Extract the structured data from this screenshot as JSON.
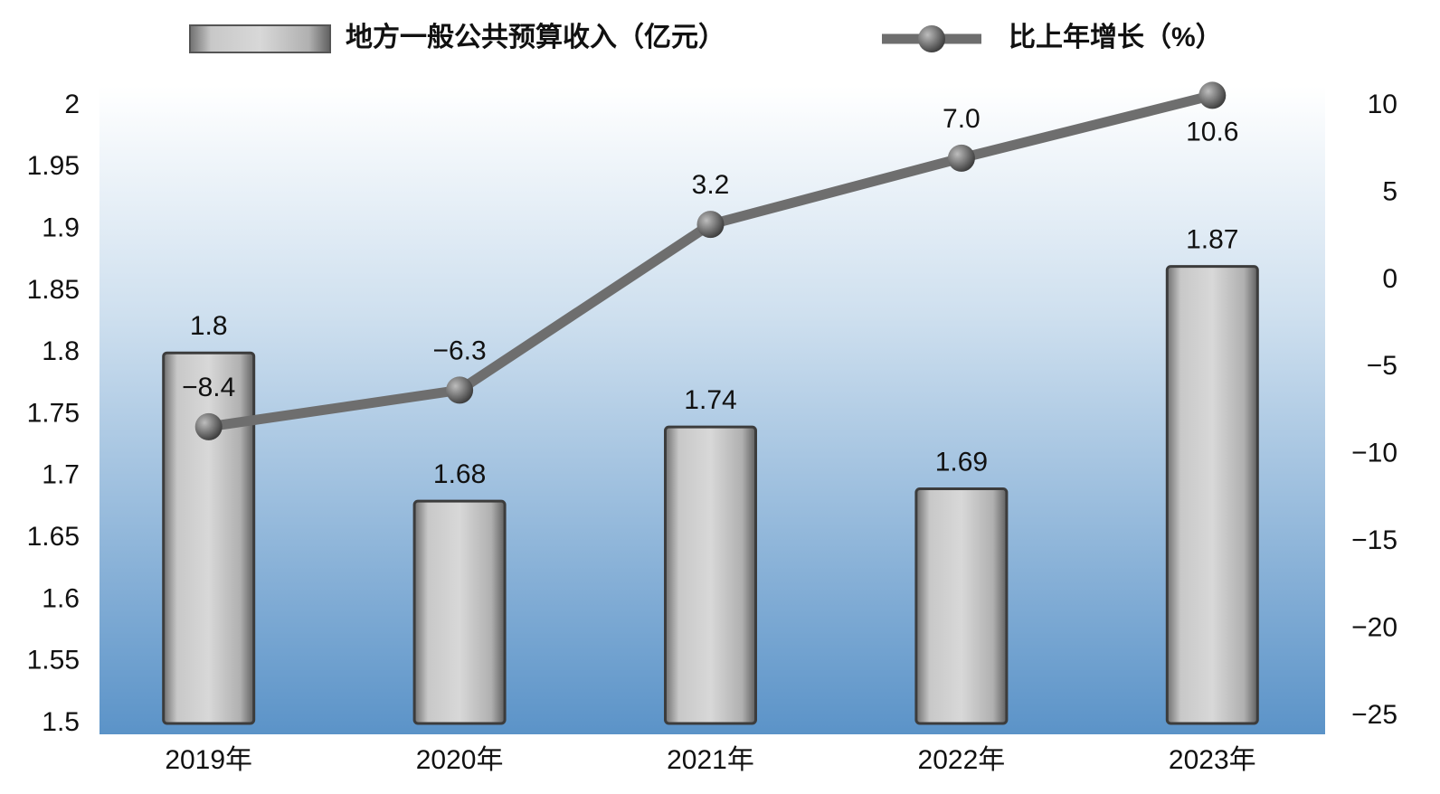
{
  "chart_data": {
    "type": "bar-line",
    "categories": [
      "2019年",
      "2020年",
      "2021年",
      "2022年",
      "2023年"
    ],
    "series": [
      {
        "name": "地方一般公共预算收入（亿元）",
        "type": "bar",
        "color": "#b8b8b8",
        "values": [
          1.8,
          1.68,
          1.74,
          1.69,
          1.87
        ]
      },
      {
        "name": "比上年增长（%）",
        "type": "line",
        "axis": "y2",
        "color": "#6e6e6e",
        "values": [
          -8.4,
          -6.3,
          3.2,
          7.0,
          10.6
        ],
        "value_labels": [
          "−8.4",
          "−6.3",
          "3.2",
          "7.0",
          "10.6"
        ]
      }
    ],
    "ylim": [
      1.5,
      2
    ],
    "yticks": [
      1.5,
      1.55,
      1.6,
      1.65,
      1.7,
      1.75,
      1.8,
      1.85,
      1.9,
      1.95,
      2
    ],
    "y2lim": [
      -25,
      10
    ],
    "y2ticks": [
      {
        "value": -25,
        "label": "−25"
      },
      {
        "value": -20,
        "label": "−20"
      },
      {
        "value": -15,
        "label": "−15"
      },
      {
        "value": -10,
        "label": "−10"
      },
      {
        "value": -5,
        "label": "−5"
      },
      0,
      5,
      10
    ],
    "grid": false
  }
}
